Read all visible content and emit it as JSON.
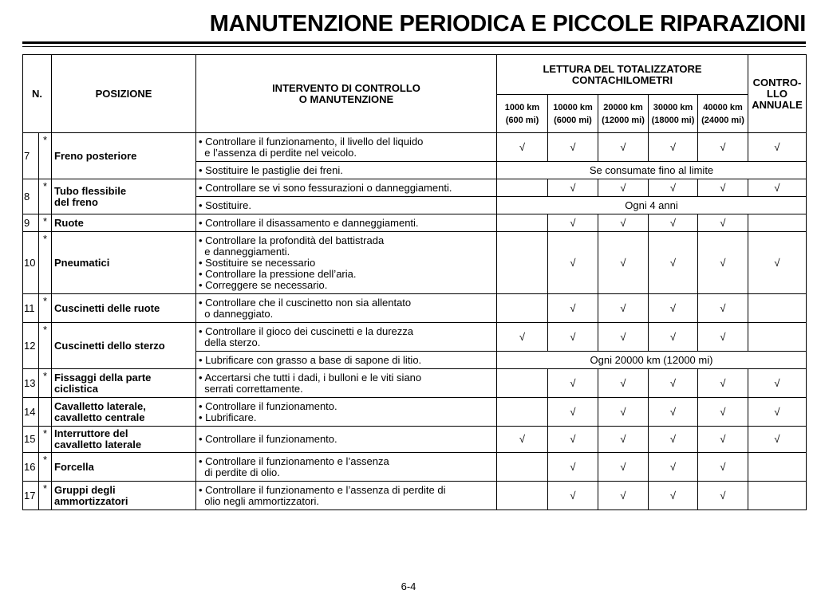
{
  "header": {
    "title": "MANUTENZIONE PERIODICA E PICCOLE RIPARAZIONI"
  },
  "table": {
    "columns": {
      "n": "N.",
      "position": "POSIZIONE",
      "intervention": "INTERVENTO DI CONTROLLO\nO MANUTENZIONE",
      "odometer": "LETTURA DEL TOTALIZZATORE\nCONTACHILOMETRI",
      "intervals": [
        {
          "km": "1000 km",
          "mi": "(600 mi)"
        },
        {
          "km": "10000 km",
          "mi": "(6000 mi)"
        },
        {
          "km": "20000 km",
          "mi": "(12000 mi)"
        },
        {
          "km": "30000 km",
          "mi": "(18000 mi)"
        },
        {
          "km": "40000 km",
          "mi": "(24000 mi)"
        }
      ],
      "annual": "CONTRO-\nLLO\nANNUALE"
    },
    "rows": [
      {
        "n": "7",
        "star": "*",
        "position": "Freno posteriore",
        "items": [
          {
            "action": "• Controllare il funzionamento, il livello del liquido\n  e l’assenza di perdite nel veicolo.",
            "checks": [
              "√",
              "√",
              "√",
              "√",
              "√",
              "√"
            ]
          },
          {
            "action": "• Sostituire le pastiglie dei freni.",
            "span": "Se consumate fino al limite"
          }
        ]
      },
      {
        "n": "8",
        "star": "*",
        "position": "Tubo flessibile\ndel freno",
        "items": [
          {
            "action": "• Controllare se vi sono fessurazioni o danneggiamenti.",
            "checks": [
              null,
              "√",
              "√",
              "√",
              "√",
              "√"
            ]
          },
          {
            "action": "• Sostituire.",
            "span": "Ogni 4 anni"
          }
        ]
      },
      {
        "n": "9",
        "star": "*",
        "position": "Ruote",
        "items": [
          {
            "action": "• Controllare il disassamento e danneggiamenti.",
            "checks": [
              null,
              "√",
              "√",
              "√",
              "√",
              null
            ]
          }
        ]
      },
      {
        "n": "10",
        "star": "*",
        "position": "Pneumatici",
        "items": [
          {
            "action": "• Controllare la profondità del battistrada\n  e danneggiamenti.\n• Sostituire se necessario\n• Controllare la pressione dell’aria.\n• Correggere se necessario.",
            "checks": [
              null,
              "√",
              "√",
              "√",
              "√",
              "√"
            ]
          }
        ]
      },
      {
        "n": "11",
        "star": "*",
        "position": "Cuscinetti delle ruote",
        "items": [
          {
            "action": "• Controllare che il cuscinetto non sia allentato\n  o danneggiato.",
            "checks": [
              null,
              "√",
              "√",
              "√",
              "√",
              null
            ]
          }
        ]
      },
      {
        "n": "12",
        "star": "*",
        "position": "Cuscinetti dello sterzo",
        "items": [
          {
            "action": "• Controllare il gioco dei cuscinetti e la durezza\n  della sterzo.",
            "checks": [
              "√",
              "√",
              "√",
              "√",
              "√",
              null
            ]
          },
          {
            "action": "• Lubrificare con grasso a base di sapone di litio.",
            "span": "Ogni 20000 km (12000 mi)"
          }
        ]
      },
      {
        "n": "13",
        "star": "*",
        "position": "Fissaggi della parte\nciclistica",
        "items": [
          {
            "action": "• Accertarsi che tutti i dadi, i bulloni e le viti siano\n  serrati correttamente.",
            "checks": [
              null,
              "√",
              "√",
              "√",
              "√",
              "√"
            ]
          }
        ]
      },
      {
        "n": "14",
        "position": "Cavalletto laterale,\ncavalletto centrale",
        "items": [
          {
            "action": "• Controllare il funzionamento.\n• Lubrificare.",
            "checks": [
              null,
              "√",
              "√",
              "√",
              "√",
              "√"
            ]
          }
        ]
      },
      {
        "n": "15",
        "star": "*",
        "position": "Interruttore del\ncavalletto laterale",
        "items": [
          {
            "action": "• Controllare il funzionamento.",
            "checks": [
              "√",
              "√",
              "√",
              "√",
              "√",
              "√"
            ]
          }
        ]
      },
      {
        "n": "16",
        "star": "*",
        "position": "Forcella",
        "items": [
          {
            "action": "• Controllare il funzionamento e l’assenza\n  di perdite di olio.",
            "checks": [
              null,
              "√",
              "√",
              "√",
              "√",
              null
            ]
          }
        ]
      },
      {
        "n": "17",
        "star": "*",
        "position": "Gruppi degli\nammortizzatori",
        "items": [
          {
            "action": "• Controllare il funzionamento e l’assenza di perdite di\n  olio negli ammortizzatori.",
            "checks": [
              null,
              "√",
              "√",
              "√",
              "√",
              null
            ]
          }
        ]
      }
    ]
  },
  "footer": {
    "page": "6-4"
  }
}
